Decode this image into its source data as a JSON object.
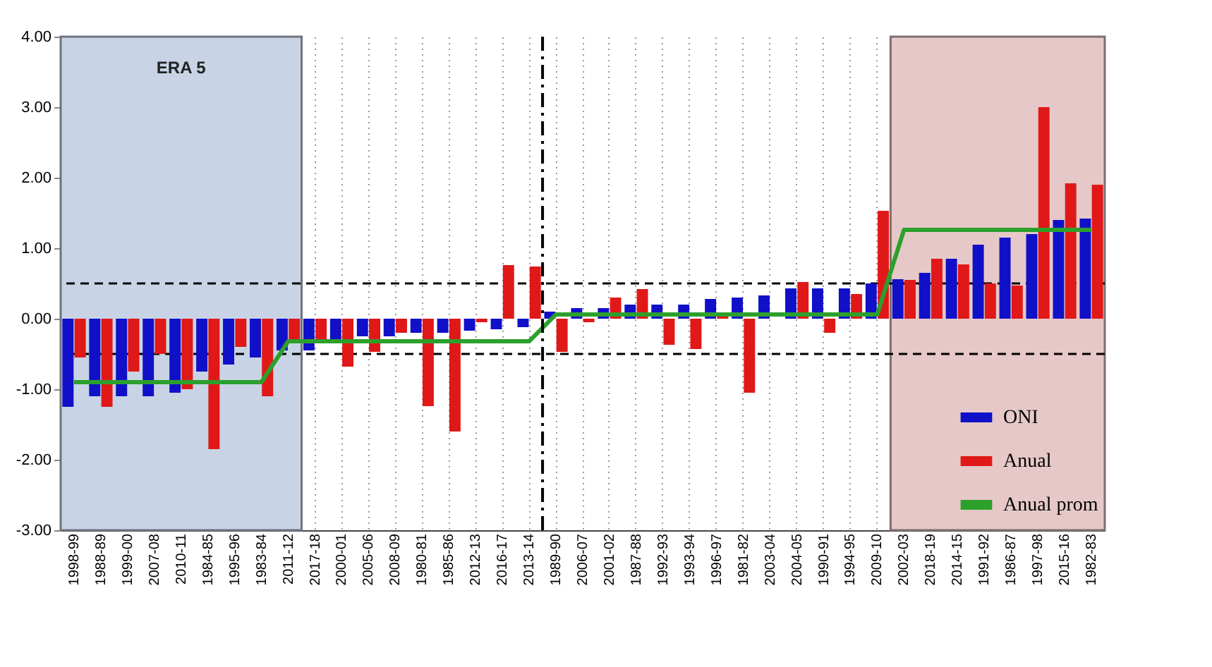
{
  "chart_data": {
    "type": "bar",
    "categories": [
      "1998-99",
      "1988-89",
      "1999-00",
      "2007-08",
      "2010-11",
      "1984-85",
      "1995-96",
      "1983-84",
      "2011-12",
      "2017-18",
      "2000-01",
      "2005-06",
      "2008-09",
      "1980-81",
      "1985-86",
      "2012-13",
      "2016-17",
      "2013-14",
      "1989-90",
      "2006-07",
      "2001-02",
      "1987-88",
      "1992-93",
      "1993-94",
      "1996-97",
      "1981-82",
      "2003-04",
      "2004-05",
      "1990-91",
      "1994-95",
      "2009-10",
      "2002-03",
      "2018-19",
      "2014-15",
      "1991-92",
      "1986-87",
      "1997-98",
      "2015-16",
      "1982-83"
    ],
    "series": [
      {
        "name": "ONI",
        "color": "#1010c8",
        "values": [
          -1.25,
          -1.1,
          -1.1,
          -1.1,
          -1.05,
          -0.75,
          -0.65,
          -0.55,
          -0.45,
          -0.45,
          -0.3,
          -0.25,
          -0.25,
          -0.2,
          -0.2,
          -0.17,
          -0.15,
          -0.12,
          0.1,
          0.15,
          0.15,
          0.2,
          0.2,
          0.2,
          0.28,
          0.3,
          0.33,
          0.43,
          0.43,
          0.43,
          0.5,
          0.56,
          0.65,
          0.85,
          1.05,
          1.15,
          1.2,
          1.4,
          1.42
        ]
      },
      {
        "name": "Anual",
        "color": "#e01818",
        "values": [
          -0.55,
          -1.25,
          -0.75,
          -0.5,
          -1.0,
          -1.85,
          -0.4,
          -1.1,
          -0.3,
          -0.3,
          -0.68,
          -0.47,
          -0.2,
          -1.24,
          -1.6,
          -0.05,
          0.76,
          0.74,
          -0.47,
          -0.05,
          0.3,
          0.42,
          -0.37,
          -0.43,
          0.05,
          -1.05,
          null,
          0.52,
          -0.2,
          0.35,
          1.53,
          0.55,
          0.85,
          0.77,
          0.5,
          0.47,
          3.0,
          1.92,
          1.9
        ]
      },
      {
        "name": "Anual prom",
        "type": "line",
        "color": "#2ca02c",
        "values": [
          -0.9,
          -0.9,
          -0.9,
          -0.9,
          -0.9,
          -0.9,
          -0.9,
          -0.9,
          -0.32,
          -0.32,
          -0.32,
          -0.32,
          -0.32,
          -0.32,
          -0.32,
          -0.32,
          -0.32,
          -0.32,
          0.06,
          0.06,
          0.06,
          0.06,
          0.06,
          0.06,
          0.06,
          0.06,
          0.06,
          0.06,
          0.06,
          0.06,
          0.06,
          1.26,
          1.26,
          1.26,
          1.26,
          1.26,
          1.26,
          1.26,
          1.26
        ]
      }
    ],
    "ylim": [
      -3,
      4
    ],
    "yticks": [
      {
        "value": -3,
        "label": "-3.00"
      },
      {
        "value": -2,
        "label": "-2.00"
      },
      {
        "value": -1,
        "label": "-1.00"
      },
      {
        "value": 0,
        "label": "0.00"
      },
      {
        "value": 1,
        "label": "1.00"
      },
      {
        "value": 2,
        "label": "2.00"
      },
      {
        "value": 3,
        "label": "3.00"
      },
      {
        "value": 4,
        "label": "4.00"
      }
    ],
    "ref_lines": [
      {
        "axis": "y",
        "value": 0.5,
        "line_style": "dashed",
        "color": "#000000"
      },
      {
        "axis": "y",
        "value": -0.5,
        "line_style": "dashed",
        "color": "#000000"
      },
      {
        "axis": "x",
        "value": "1989-90",
        "line_style": "dashed",
        "color": "#000000"
      }
    ],
    "bands": [
      {
        "axis": "x",
        "from": "1998-99",
        "to": "2011-12",
        "label": "ERA 5",
        "color": "#c8d4e6"
      },
      {
        "axis": "x",
        "from": "2002-03",
        "to": "1982-83",
        "color": "#e6c8c8"
      }
    ],
    "grid": "x",
    "legend": "bottom right"
  }
}
